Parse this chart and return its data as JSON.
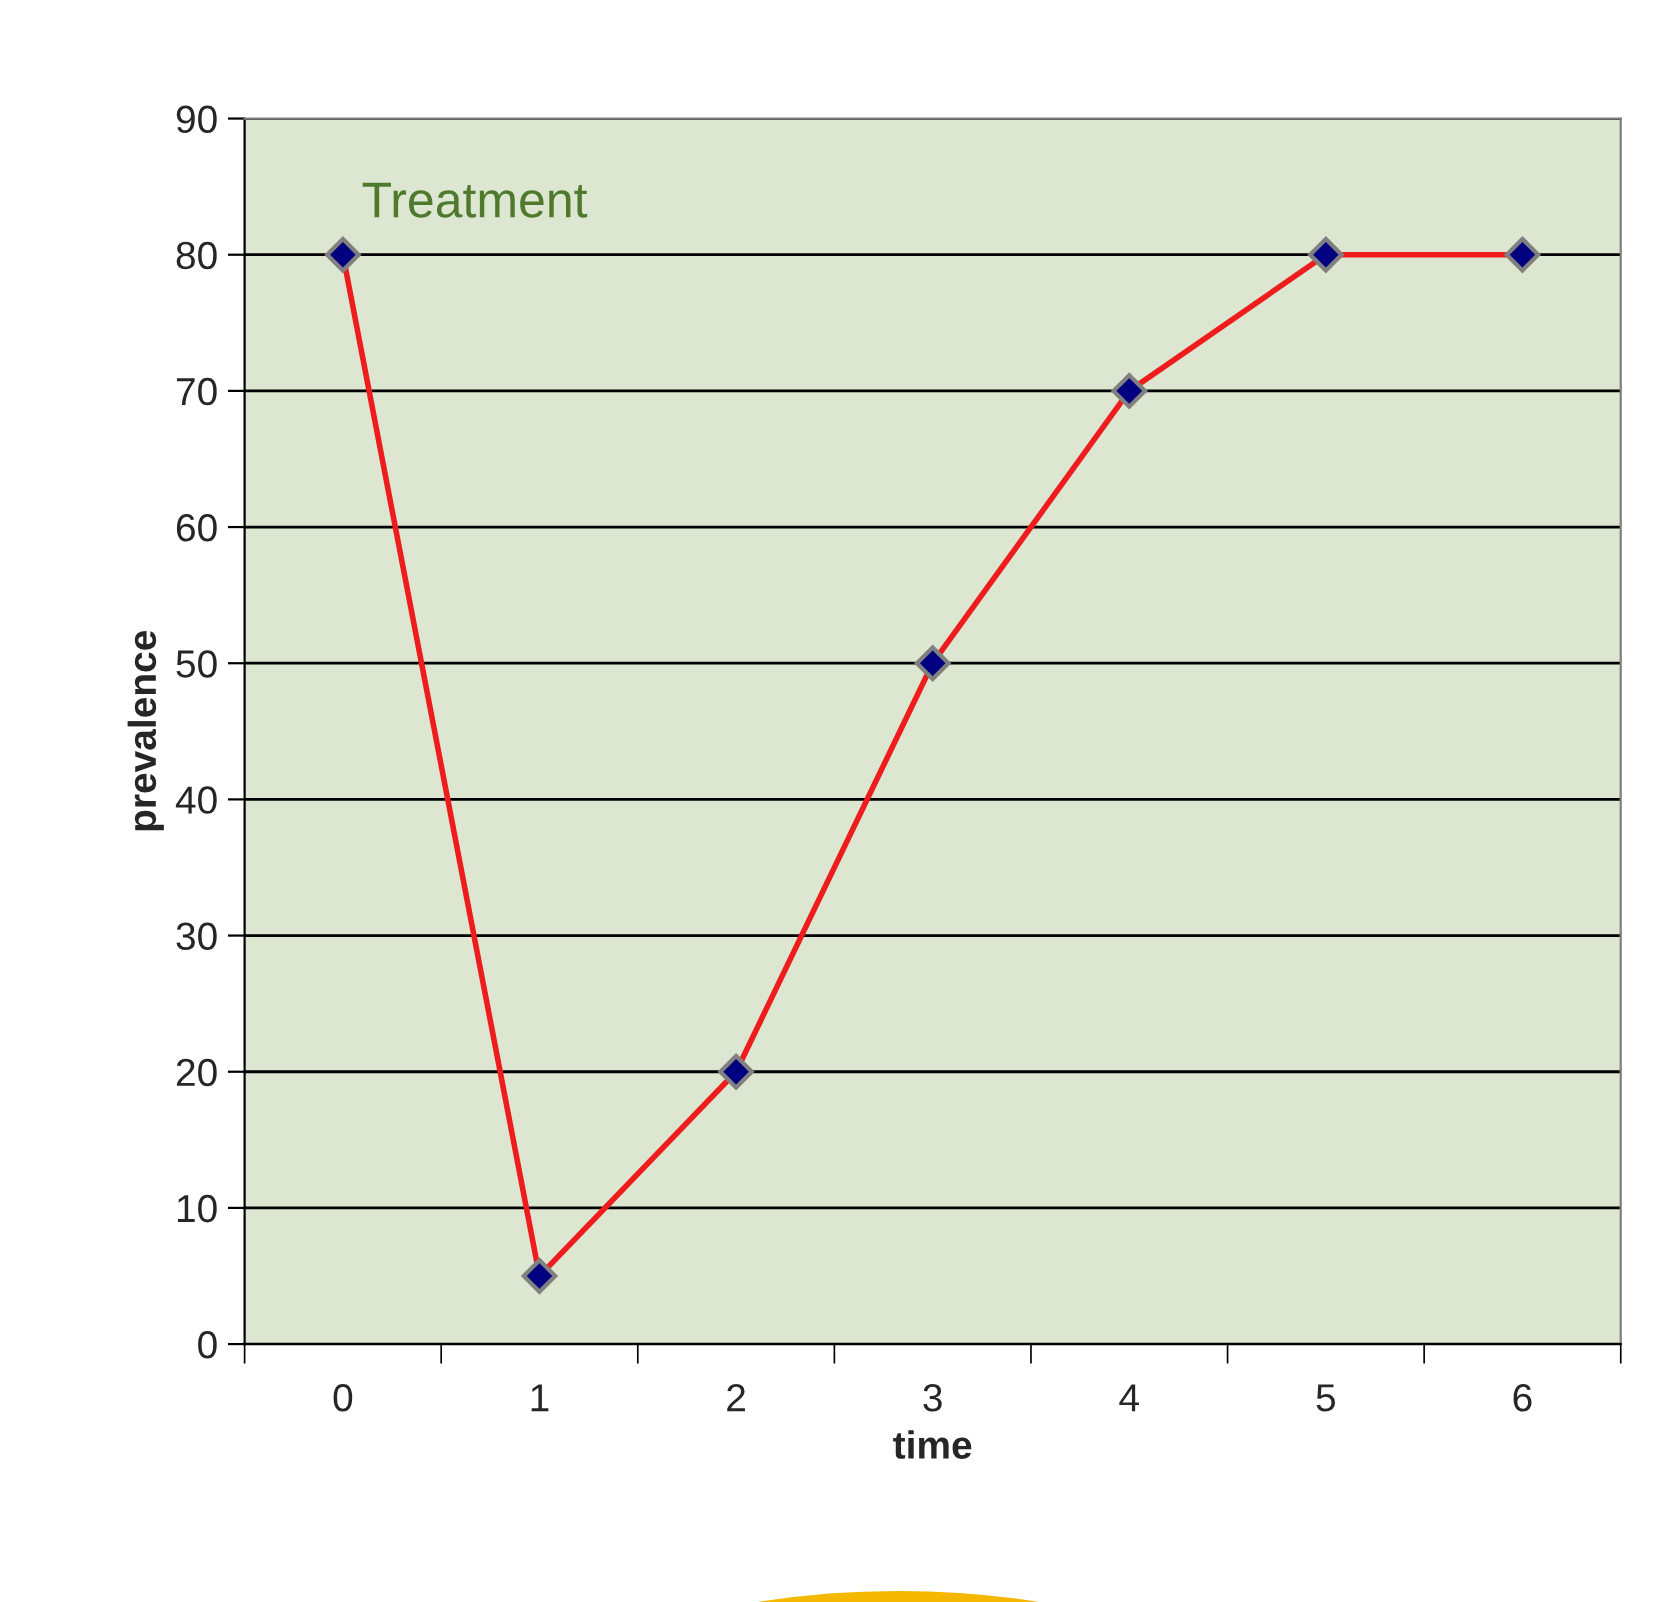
{
  "chart_data": {
    "type": "line",
    "xlabel": "time",
    "ylabel": "prevalence",
    "categories": [
      "0",
      "1",
      "2",
      "3",
      "4",
      "5",
      "6"
    ],
    "series": [
      {
        "color": "#ee1c1c",
        "values": [
          80,
          5,
          20,
          50,
          70,
          80,
          80
        ]
      }
    ],
    "ylim": [
      0,
      90
    ],
    "yticks": [
      0,
      10,
      20,
      30,
      40,
      50,
      60,
      70,
      80,
      90
    ],
    "grid": "y",
    "marker": "diamond",
    "line_style": "solid",
    "annotations": [
      "Treatment"
    ]
  }
}
